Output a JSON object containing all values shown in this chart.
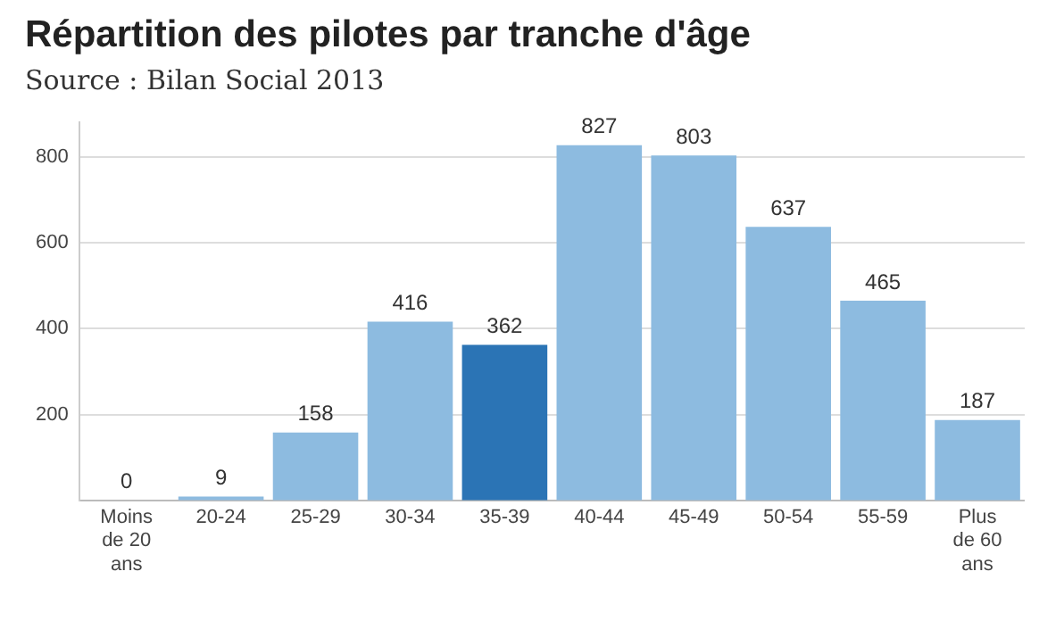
{
  "chart_data": {
    "type": "bar",
    "title": "Répartition des pilotes par tranche d'âge",
    "subtitle": "Source : Bilan Social 2013",
    "categories": [
      "Moins de 20 ans",
      "20-24",
      "25-29",
      "30-34",
      "35-39",
      "40-44",
      "45-49",
      "50-54",
      "55-59",
      "Plus de 60 ans"
    ],
    "values": [
      0,
      9,
      158,
      416,
      362,
      827,
      803,
      637,
      465,
      187
    ],
    "colors": [
      "#8dbbe0",
      "#8dbbe0",
      "#8dbbe0",
      "#8dbbe0",
      "#2b74b5",
      "#8dbbe0",
      "#8dbbe0",
      "#8dbbe0",
      "#8dbbe0",
      "#8dbbe0"
    ],
    "ylim": [
      0,
      880
    ],
    "yticks": [
      200,
      400,
      600,
      800
    ],
    "grid": "y",
    "data_labels": true
  }
}
